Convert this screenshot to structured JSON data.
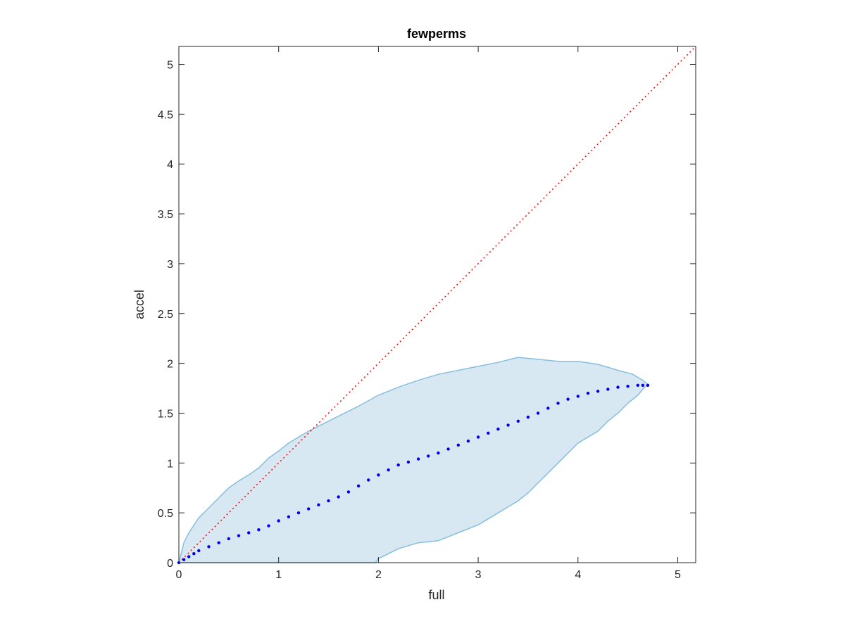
{
  "chart_data": {
    "type": "scatter",
    "title": "fewperms",
    "xlabel": "full",
    "ylabel": "accel",
    "xlim": [
      0,
      5.18
    ],
    "ylim": [
      0,
      5.18
    ],
    "xticks": [
      0,
      1,
      2,
      3,
      4,
      5
    ],
    "yticks": [
      0,
      0.5,
      1,
      1.5,
      2,
      2.5,
      3,
      3.5,
      4,
      4.5,
      5
    ],
    "xtick_labels": [
      "0",
      "1",
      "2",
      "3",
      "4",
      "5"
    ],
    "ytick_labels": [
      "0",
      "0.5",
      "1",
      "1.5",
      "2",
      "2.5",
      "3",
      "3.5",
      "4",
      "4.5",
      "5"
    ],
    "grid": false,
    "legend": "none",
    "colors": {
      "points": "#0000ee",
      "band_fill": "#d8e8f3",
      "band_edge": "#86bedd",
      "reference_line": "#ff0000",
      "axes": "#262626"
    },
    "reference_line": {
      "style": "dotted",
      "x": [
        0,
        5.18
      ],
      "y": [
        0,
        5.18
      ]
    },
    "band_upper": {
      "x": [
        0,
        0.05,
        0.1,
        0.2,
        0.3,
        0.4,
        0.5,
        0.6,
        0.7,
        0.8,
        0.9,
        1.0,
        1.1,
        1.2,
        1.3,
        1.4,
        1.5,
        1.6,
        1.8,
        2.0,
        2.2,
        2.4,
        2.6,
        2.8,
        3.0,
        3.2,
        3.4,
        3.6,
        3.8,
        4.0,
        4.2,
        4.4,
        4.55,
        4.65,
        4.7
      ],
      "y": [
        0,
        0.2,
        0.3,
        0.45,
        0.55,
        0.65,
        0.75,
        0.82,
        0.88,
        0.95,
        1.05,
        1.12,
        1.2,
        1.26,
        1.32,
        1.37,
        1.42,
        1.47,
        1.57,
        1.68,
        1.76,
        1.83,
        1.89,
        1.93,
        1.97,
        2.01,
        2.06,
        2.04,
        2.02,
        2.02,
        1.99,
        1.93,
        1.89,
        1.83,
        1.79
      ]
    },
    "band_lower": {
      "x": [
        4.7,
        4.65,
        4.6,
        4.5,
        4.4,
        4.3,
        4.2,
        4.0,
        3.8,
        3.6,
        3.5,
        3.4,
        3.3,
        3.2,
        3.1,
        3.0,
        2.8,
        2.6,
        2.4,
        2.2,
        2.1,
        2.0,
        1.97
      ],
      "y": [
        1.79,
        1.74,
        1.68,
        1.6,
        1.5,
        1.42,
        1.32,
        1.2,
        1.0,
        0.8,
        0.7,
        0.62,
        0.56,
        0.5,
        0.44,
        0.38,
        0.3,
        0.22,
        0.2,
        0.14,
        0.09,
        0.04,
        0
      ]
    },
    "series": [
      {
        "x": [
          0.0,
          0.05,
          0.1,
          0.15,
          0.2,
          0.3,
          0.4,
          0.5,
          0.6,
          0.7,
          0.8,
          0.9,
          1.0,
          1.1,
          1.2,
          1.3,
          1.4,
          1.5,
          1.6,
          1.7,
          1.8,
          1.9,
          2.0,
          2.1,
          2.2,
          2.3,
          2.4,
          2.5,
          2.6,
          2.7,
          2.8,
          2.9,
          3.0,
          3.1,
          3.2,
          3.3,
          3.4,
          3.5,
          3.6,
          3.7,
          3.8,
          3.9,
          4.0,
          4.1,
          4.2,
          4.3,
          4.4,
          4.5,
          4.6,
          4.65,
          4.7
        ],
        "y": [
          0.0,
          0.03,
          0.06,
          0.09,
          0.12,
          0.16,
          0.2,
          0.24,
          0.27,
          0.3,
          0.33,
          0.37,
          0.42,
          0.46,
          0.5,
          0.54,
          0.58,
          0.62,
          0.66,
          0.71,
          0.77,
          0.83,
          0.88,
          0.93,
          0.98,
          1.01,
          1.04,
          1.07,
          1.1,
          1.14,
          1.18,
          1.22,
          1.26,
          1.3,
          1.34,
          1.38,
          1.42,
          1.46,
          1.5,
          1.55,
          1.6,
          1.64,
          1.67,
          1.7,
          1.72,
          1.74,
          1.76,
          1.77,
          1.78,
          1.78,
          1.78
        ]
      }
    ]
  }
}
